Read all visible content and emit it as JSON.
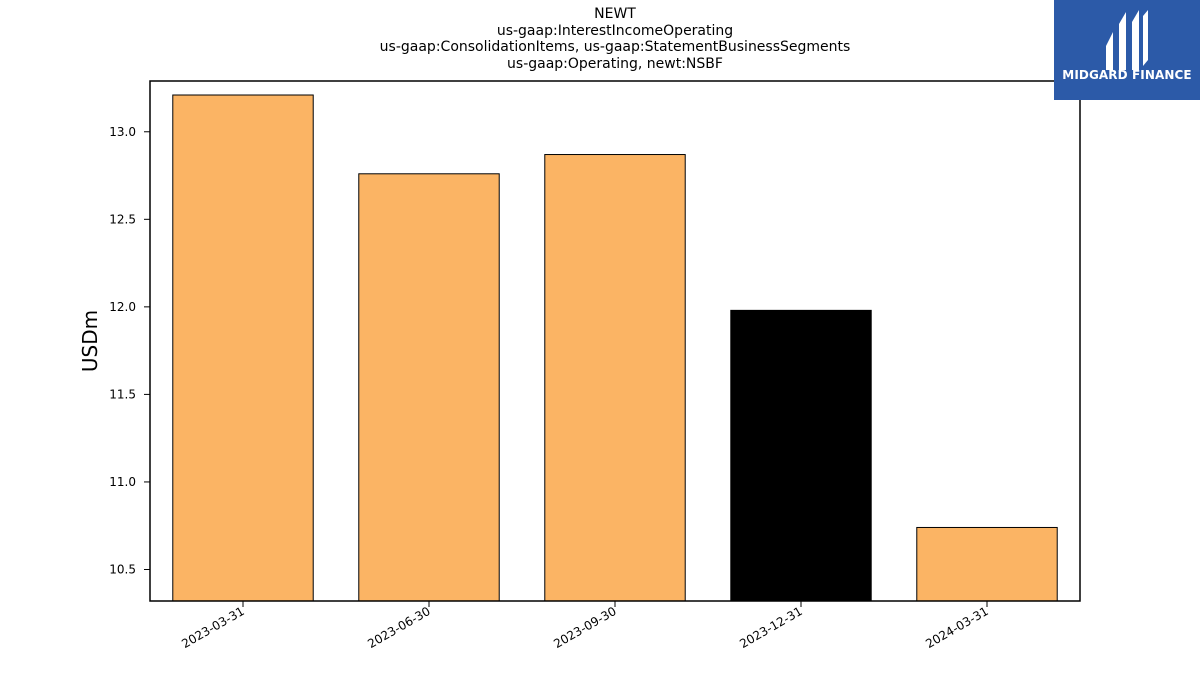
{
  "chart_data": {
    "type": "bar",
    "title_lines": [
      "NEWT",
      "us-gaap:InterestIncomeOperating",
      "us-gaap:ConsolidationItems, us-gaap:StatementBusinessSegments",
      "us-gaap:Operating, newt:NSBF"
    ],
    "categories": [
      "2023-03-31",
      "2023-06-30",
      "2023-09-30",
      "2023-12-31",
      "2024-03-31"
    ],
    "values": [
      13.21,
      12.76,
      12.87,
      11.98,
      10.74
    ],
    "bar_colors": [
      "#fbb464",
      "#fbb464",
      "#fbb464",
      "#000000",
      "#fbb464"
    ],
    "ylabel": "USDm",
    "xlabel": "",
    "ylim": [
      10.32,
      13.29
    ],
    "yticks": [
      10.5,
      11.0,
      11.5,
      12.0,
      12.5,
      13.0
    ],
    "ytick_labels": [
      "10.5",
      "11.0",
      "11.5",
      "12.0",
      "12.5",
      "13.0"
    ],
    "grid": false,
    "legend": "none"
  },
  "logo": {
    "text": "MIDGARD FINANCE",
    "icon": "midgard-logo-icon",
    "background": "#2c5aa8"
  }
}
